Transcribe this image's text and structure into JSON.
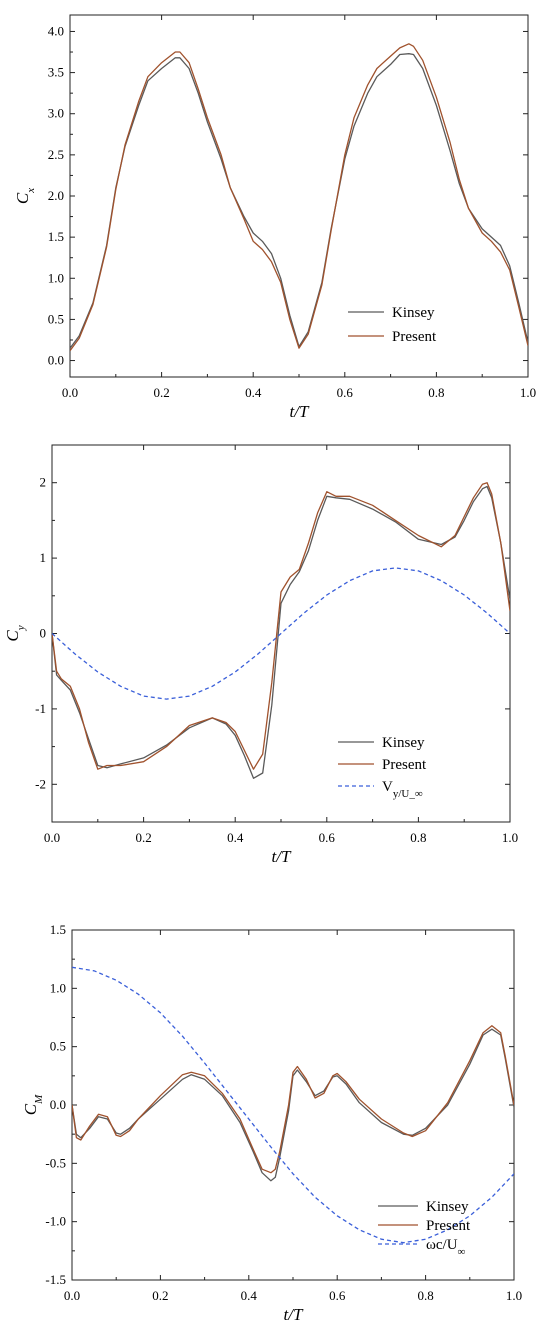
{
  "colors": {
    "kinsey": "#5a5a5a",
    "present": "#a0522d",
    "dashed": "#3a5fd9",
    "axis": "#222222"
  },
  "chart_data": [
    {
      "type": "line",
      "xlabel": "t/T",
      "ylabel_main": "C",
      "ylabel_sub": "x",
      "xlim": [
        0.0,
        1.0
      ],
      "ylim": [
        -0.2,
        4.2
      ],
      "xticks": [
        "0.0",
        "0.2",
        "0.4",
        "0.6",
        "0.8",
        "1.0"
      ],
      "yticks": [
        "0.0",
        "0.5",
        "1.0",
        "1.5",
        "2.0",
        "2.5",
        "3.0",
        "3.5",
        "4.0"
      ],
      "legend_position": "lower-right",
      "series": [
        {
          "name": "Kinsey",
          "style": "solid",
          "x": [
            0,
            0.02,
            0.05,
            0.08,
            0.1,
            0.12,
            0.15,
            0.17,
            0.2,
            0.23,
            0.24,
            0.26,
            0.28,
            0.3,
            0.33,
            0.35,
            0.38,
            0.4,
            0.42,
            0.44,
            0.46,
            0.48,
            0.5,
            0.52,
            0.55,
            0.57,
            0.6,
            0.62,
            0.65,
            0.67,
            0.7,
            0.72,
            0.74,
            0.75,
            0.77,
            0.8,
            0.83,
            0.85,
            0.87,
            0.9,
            0.92,
            0.94,
            0.96,
            0.98,
            1.0
          ],
          "y": [
            0.15,
            0.3,
            0.7,
            1.4,
            2.1,
            2.6,
            3.1,
            3.4,
            3.55,
            3.68,
            3.68,
            3.55,
            3.25,
            2.9,
            2.45,
            2.1,
            1.75,
            1.55,
            1.45,
            1.3,
            1.0,
            0.55,
            0.17,
            0.35,
            0.95,
            1.6,
            2.45,
            2.85,
            3.25,
            3.45,
            3.6,
            3.72,
            3.73,
            3.72,
            3.55,
            3.1,
            2.55,
            2.15,
            1.85,
            1.6,
            1.5,
            1.4,
            1.15,
            0.7,
            0.22
          ]
        },
        {
          "name": "Present",
          "style": "solid",
          "x": [
            0,
            0.02,
            0.05,
            0.08,
            0.1,
            0.12,
            0.15,
            0.17,
            0.2,
            0.23,
            0.24,
            0.26,
            0.28,
            0.3,
            0.33,
            0.35,
            0.38,
            0.4,
            0.42,
            0.44,
            0.46,
            0.48,
            0.5,
            0.52,
            0.55,
            0.57,
            0.6,
            0.62,
            0.65,
            0.67,
            0.7,
            0.72,
            0.74,
            0.75,
            0.77,
            0.8,
            0.83,
            0.85,
            0.87,
            0.9,
            0.92,
            0.94,
            0.96,
            0.98,
            1.0
          ],
          "y": [
            0.12,
            0.27,
            0.68,
            1.38,
            2.08,
            2.62,
            3.15,
            3.45,
            3.62,
            3.75,
            3.75,
            3.62,
            3.3,
            2.95,
            2.5,
            2.1,
            1.72,
            1.45,
            1.35,
            1.2,
            0.95,
            0.5,
            0.15,
            0.32,
            0.92,
            1.58,
            2.5,
            2.95,
            3.35,
            3.55,
            3.7,
            3.8,
            3.85,
            3.82,
            3.65,
            3.2,
            2.65,
            2.2,
            1.85,
            1.55,
            1.45,
            1.32,
            1.1,
            0.65,
            0.18
          ]
        }
      ]
    },
    {
      "type": "line",
      "xlabel": "t/T",
      "ylabel_main": "C",
      "ylabel_sub": "y",
      "xlim": [
        0.0,
        1.0
      ],
      "ylim": [
        -2.5,
        2.5
      ],
      "xticks": [
        "0.0",
        "0.2",
        "0.4",
        "0.6",
        "0.8",
        "1.0"
      ],
      "yticks": [
        "-2",
        "-1",
        "0",
        "1",
        "2"
      ],
      "legend_position": "lower-right",
      "series": [
        {
          "name": "Kinsey",
          "style": "solid",
          "x": [
            0,
            0.01,
            0.02,
            0.04,
            0.06,
            0.08,
            0.1,
            0.12,
            0.15,
            0.2,
            0.25,
            0.3,
            0.35,
            0.38,
            0.4,
            0.42,
            0.44,
            0.46,
            0.48,
            0.5,
            0.52,
            0.54,
            0.56,
            0.58,
            0.6,
            0.62,
            0.65,
            0.7,
            0.75,
            0.8,
            0.85,
            0.88,
            0.9,
            0.92,
            0.94,
            0.95,
            0.96,
            0.98,
            1.0
          ],
          "y": [
            0,
            -0.55,
            -0.62,
            -0.75,
            -1.05,
            -1.4,
            -1.75,
            -1.78,
            -1.73,
            -1.65,
            -1.48,
            -1.25,
            -1.12,
            -1.2,
            -1.35,
            -1.62,
            -1.92,
            -1.85,
            -0.95,
            0.4,
            0.65,
            0.82,
            1.1,
            1.5,
            1.82,
            1.8,
            1.78,
            1.65,
            1.48,
            1.25,
            1.18,
            1.28,
            1.5,
            1.75,
            1.92,
            1.95,
            1.8,
            1.2,
            0.45
          ]
        },
        {
          "name": "Present",
          "style": "solid",
          "x": [
            0,
            0.01,
            0.02,
            0.04,
            0.06,
            0.08,
            0.1,
            0.12,
            0.15,
            0.2,
            0.25,
            0.3,
            0.35,
            0.38,
            0.4,
            0.42,
            0.44,
            0.46,
            0.48,
            0.5,
            0.52,
            0.54,
            0.56,
            0.58,
            0.6,
            0.62,
            0.65,
            0.7,
            0.75,
            0.8,
            0.85,
            0.88,
            0.9,
            0.92,
            0.94,
            0.95,
            0.96,
            0.98,
            1.0
          ],
          "y": [
            0,
            -0.5,
            -0.6,
            -0.7,
            -1.0,
            -1.45,
            -1.8,
            -1.75,
            -1.75,
            -1.7,
            -1.5,
            -1.22,
            -1.12,
            -1.18,
            -1.3,
            -1.55,
            -1.8,
            -1.6,
            -0.65,
            0.55,
            0.75,
            0.85,
            1.2,
            1.6,
            1.88,
            1.82,
            1.82,
            1.7,
            1.5,
            1.3,
            1.15,
            1.3,
            1.55,
            1.8,
            1.98,
            2.0,
            1.85,
            1.2,
            0.3
          ]
        },
        {
          "name": "V_y/U_∞",
          "style": "dashed",
          "x": [
            0,
            0.05,
            0.1,
            0.15,
            0.2,
            0.25,
            0.3,
            0.35,
            0.4,
            0.45,
            0.5,
            0.55,
            0.6,
            0.65,
            0.7,
            0.75,
            0.8,
            0.85,
            0.9,
            0.95,
            1.0
          ],
          "y": [
            0,
            -0.27,
            -0.51,
            -0.7,
            -0.83,
            -0.87,
            -0.83,
            -0.7,
            -0.51,
            -0.27,
            0,
            0.27,
            0.51,
            0.7,
            0.83,
            0.87,
            0.83,
            0.7,
            0.51,
            0.27,
            0
          ]
        }
      ]
    },
    {
      "type": "line",
      "xlabel": "t/T",
      "ylabel_main": "C",
      "ylabel_sub": "M",
      "xlim": [
        0.0,
        1.0
      ],
      "ylim": [
        -1.5,
        1.5
      ],
      "xticks": [
        "0.0",
        "0.2",
        "0.4",
        "0.6",
        "0.8",
        "1.0"
      ],
      "yticks": [
        "-1.5",
        "-1.0",
        "-0.5",
        "0.0",
        "0.5",
        "1.0",
        "1.5"
      ],
      "legend_position": "lower-right",
      "series": [
        {
          "name": "Kinsey",
          "style": "solid",
          "x": [
            0,
            0.01,
            0.02,
            0.04,
            0.06,
            0.08,
            0.1,
            0.11,
            0.13,
            0.15,
            0.2,
            0.25,
            0.27,
            0.3,
            0.34,
            0.38,
            0.41,
            0.43,
            0.45,
            0.46,
            0.47,
            0.49,
            0.5,
            0.51,
            0.53,
            0.55,
            0.57,
            0.59,
            0.6,
            0.62,
            0.65,
            0.7,
            0.75,
            0.77,
            0.8,
            0.85,
            0.9,
            0.93,
            0.95,
            0.97,
            0.98,
            1.0
          ],
          "y": [
            0,
            -0.25,
            -0.28,
            -0.2,
            -0.1,
            -0.12,
            -0.24,
            -0.25,
            -0.2,
            -0.12,
            0.05,
            0.22,
            0.26,
            0.22,
            0.08,
            -0.15,
            -0.4,
            -0.58,
            -0.65,
            -0.62,
            -0.45,
            -0.05,
            0.25,
            0.3,
            0.2,
            0.08,
            0.12,
            0.24,
            0.25,
            0.18,
            0.02,
            -0.15,
            -0.25,
            -0.26,
            -0.2,
            0.0,
            0.35,
            0.6,
            0.65,
            0.6,
            0.4,
            -0.02
          ]
        },
        {
          "name": "Present",
          "style": "solid",
          "x": [
            0,
            0.01,
            0.02,
            0.04,
            0.06,
            0.08,
            0.1,
            0.11,
            0.13,
            0.15,
            0.2,
            0.25,
            0.27,
            0.3,
            0.34,
            0.38,
            0.41,
            0.43,
            0.45,
            0.46,
            0.47,
            0.49,
            0.5,
            0.51,
            0.53,
            0.55,
            0.57,
            0.59,
            0.6,
            0.62,
            0.65,
            0.7,
            0.75,
            0.77,
            0.8,
            0.85,
            0.9,
            0.93,
            0.95,
            0.97,
            0.98,
            1.0
          ],
          "y": [
            0,
            -0.28,
            -0.3,
            -0.18,
            -0.08,
            -0.1,
            -0.26,
            -0.27,
            -0.22,
            -0.12,
            0.08,
            0.26,
            0.28,
            0.25,
            0.1,
            -0.12,
            -0.38,
            -0.55,
            -0.58,
            -0.55,
            -0.4,
            0.0,
            0.28,
            0.33,
            0.22,
            0.06,
            0.1,
            0.25,
            0.27,
            0.2,
            0.05,
            -0.12,
            -0.24,
            -0.27,
            -0.22,
            0.02,
            0.38,
            0.62,
            0.68,
            0.62,
            0.42,
            0.0
          ]
        },
        {
          "name": "ωc/U_∞",
          "style": "dashed",
          "x": [
            0,
            0.05,
            0.1,
            0.15,
            0.2,
            0.25,
            0.3,
            0.35,
            0.4,
            0.45,
            0.5,
            0.55,
            0.6,
            0.65,
            0.7,
            0.75,
            0.8,
            0.85,
            0.9,
            0.95,
            1.0
          ],
          "y": [
            1.18,
            1.15,
            1.07,
            0.95,
            0.79,
            0.59,
            0.36,
            0.12,
            -0.12,
            -0.36,
            -0.59,
            -0.79,
            -0.95,
            -1.07,
            -1.15,
            -1.18,
            -1.15,
            -1.07,
            -0.95,
            -0.79,
            -0.59
          ]
        }
      ]
    }
  ]
}
